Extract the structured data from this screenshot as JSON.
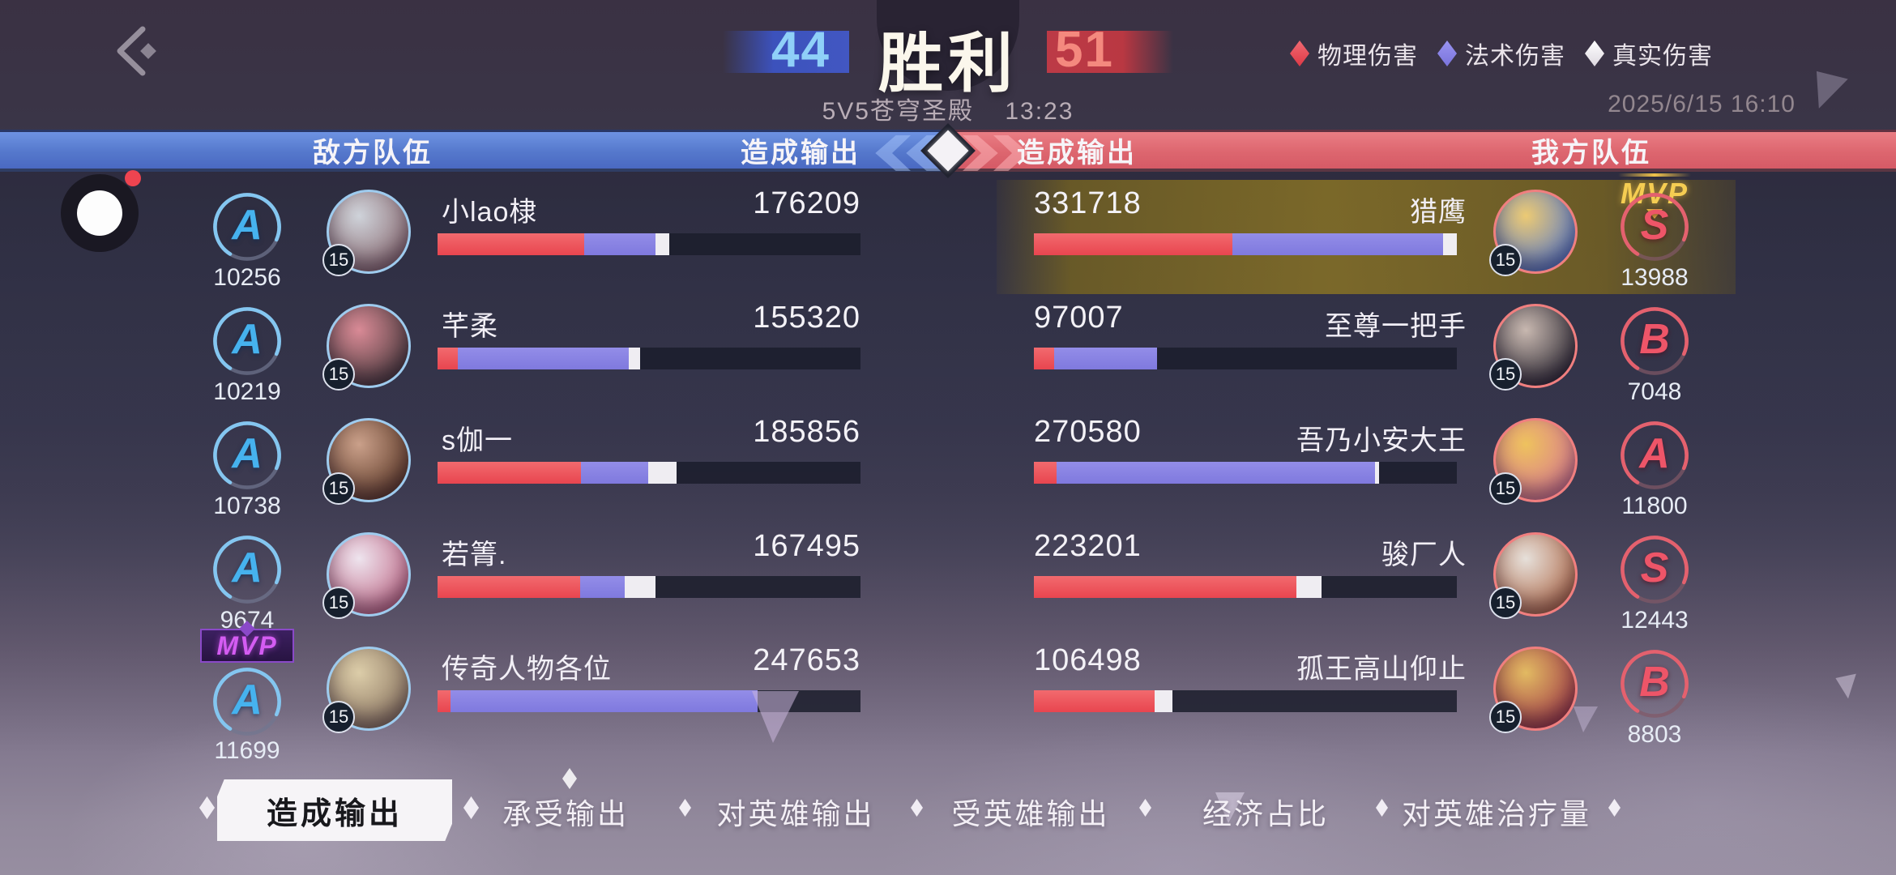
{
  "header": {
    "score_left": "44",
    "score_right": "51",
    "result": "胜利",
    "match_mode": "5V5苍穹圣殿",
    "duration": "13:23",
    "datetime": "2025/6/15 16:10",
    "legend": [
      {
        "label": "物理伤害",
        "color": "#e84c5a"
      },
      {
        "label": "法术伤害",
        "color": "#8781e8"
      },
      {
        "label": "真实伤害",
        "color": "#f2f0f4"
      }
    ]
  },
  "columns": {
    "left_team": "敌方队伍",
    "left_stat": "造成输出",
    "right_stat": "造成输出",
    "right_team": "我方队伍"
  },
  "table": {
    "left_rows": [
      {
        "grade": "A",
        "grade_score": "10256",
        "level": "15",
        "name": "小lao棣",
        "value": "176209",
        "bar": {
          "red": 34.7,
          "purple": 16.8,
          "white": 3.2
        },
        "avatar": {
          "c1": "#cfd3da",
          "c2": "#8a6b72"
        }
      },
      {
        "grade": "A",
        "grade_score": "10219",
        "level": "15",
        "name": "芊柔",
        "value": "155320",
        "bar": {
          "red": 4.7,
          "purple": 40.5,
          "white": 2.6
        },
        "avatar": {
          "c1": "#d98a96",
          "c2": "#4a3a3c"
        }
      },
      {
        "grade": "A",
        "grade_score": "10738",
        "level": "15",
        "name": "s伽一",
        "value": "185856",
        "bar": {
          "red": 34.0,
          "purple": 15.8,
          "white": 6.8
        },
        "avatar": {
          "c1": "#caa08a",
          "c2": "#5e3a28"
        }
      },
      {
        "grade": "A",
        "grade_score": "9674",
        "level": "15",
        "name": "若箐.",
        "value": "167495",
        "bar": {
          "red": 33.7,
          "purple": 10.5,
          "white": 7.4
        },
        "avatar": {
          "c1": "#eee4ee",
          "c2": "#c06a88"
        }
      },
      {
        "grade": "A",
        "grade_score": "11699",
        "level": "15",
        "name": "传奇人物各位",
        "value": "247653",
        "bar": {
          "red": 3.0,
          "purple": 72.6,
          "white": 0
        },
        "avatar": {
          "c1": "#dccda9",
          "c2": "#8a7460"
        },
        "mvp": "MVP"
      }
    ],
    "right_rows": [
      {
        "grade": "S",
        "grade_score": "13988",
        "level": "15",
        "name": "猎鹰",
        "value": "331718",
        "bar": {
          "red": 47.0,
          "purple": 49.7,
          "white": 3.3
        },
        "avatar": {
          "c1": "#ecca74",
          "c2": "#5a7ac8"
        },
        "mvp": "MVP"
      },
      {
        "grade": "B",
        "grade_score": "7048",
        "level": "15",
        "name": "至尊一把手",
        "value": "97007",
        "bar": {
          "red": 4.8,
          "purple": 24.4,
          "white": 0
        },
        "avatar": {
          "c1": "#c8b8b0",
          "c2": "#2e2a34"
        }
      },
      {
        "grade": "A",
        "grade_score": "11800",
        "level": "15",
        "name": "吾乃小安大王",
        "value": "270580",
        "bar": {
          "red": 5.4,
          "purple": 75.2,
          "white": 1.0
        },
        "avatar": {
          "c1": "#eec25e",
          "c2": "#d87890"
        }
      },
      {
        "grade": "S",
        "grade_score": "12443",
        "level": "15",
        "name": "骏厂人",
        "value": "223201",
        "bar": {
          "red": 62.0,
          "purple": 0,
          "white": 6.1
        },
        "avatar": {
          "c1": "#e6e0da",
          "c2": "#b06a4a"
        }
      },
      {
        "grade": "B",
        "grade_score": "8803",
        "level": "15",
        "name": "孤王高山仰止",
        "value": "106498",
        "bar": {
          "red": 28.6,
          "purple": 0,
          "white": 4.1
        },
        "avatar": {
          "c1": "#e2ba62",
          "c2": "#a03a48"
        }
      }
    ]
  },
  "tabs": [
    {
      "label": "造成输出",
      "active": true
    },
    {
      "label": "承受输出",
      "active": false
    },
    {
      "label": "对英雄输出",
      "active": false
    },
    {
      "label": "受英雄输出",
      "active": false
    },
    {
      "label": "经济占比",
      "active": false
    },
    {
      "label": "对英雄治疗量",
      "active": false
    }
  ],
  "colors": {
    "physical": "#e84c5a",
    "magic": "#8781e8",
    "true_dmg": "#f2f0f4",
    "team_blue": "#5578cc",
    "team_red": "#dd666f",
    "mvp_gold": "#f5cd52",
    "mvp_purple": "#d45cf2"
  }
}
